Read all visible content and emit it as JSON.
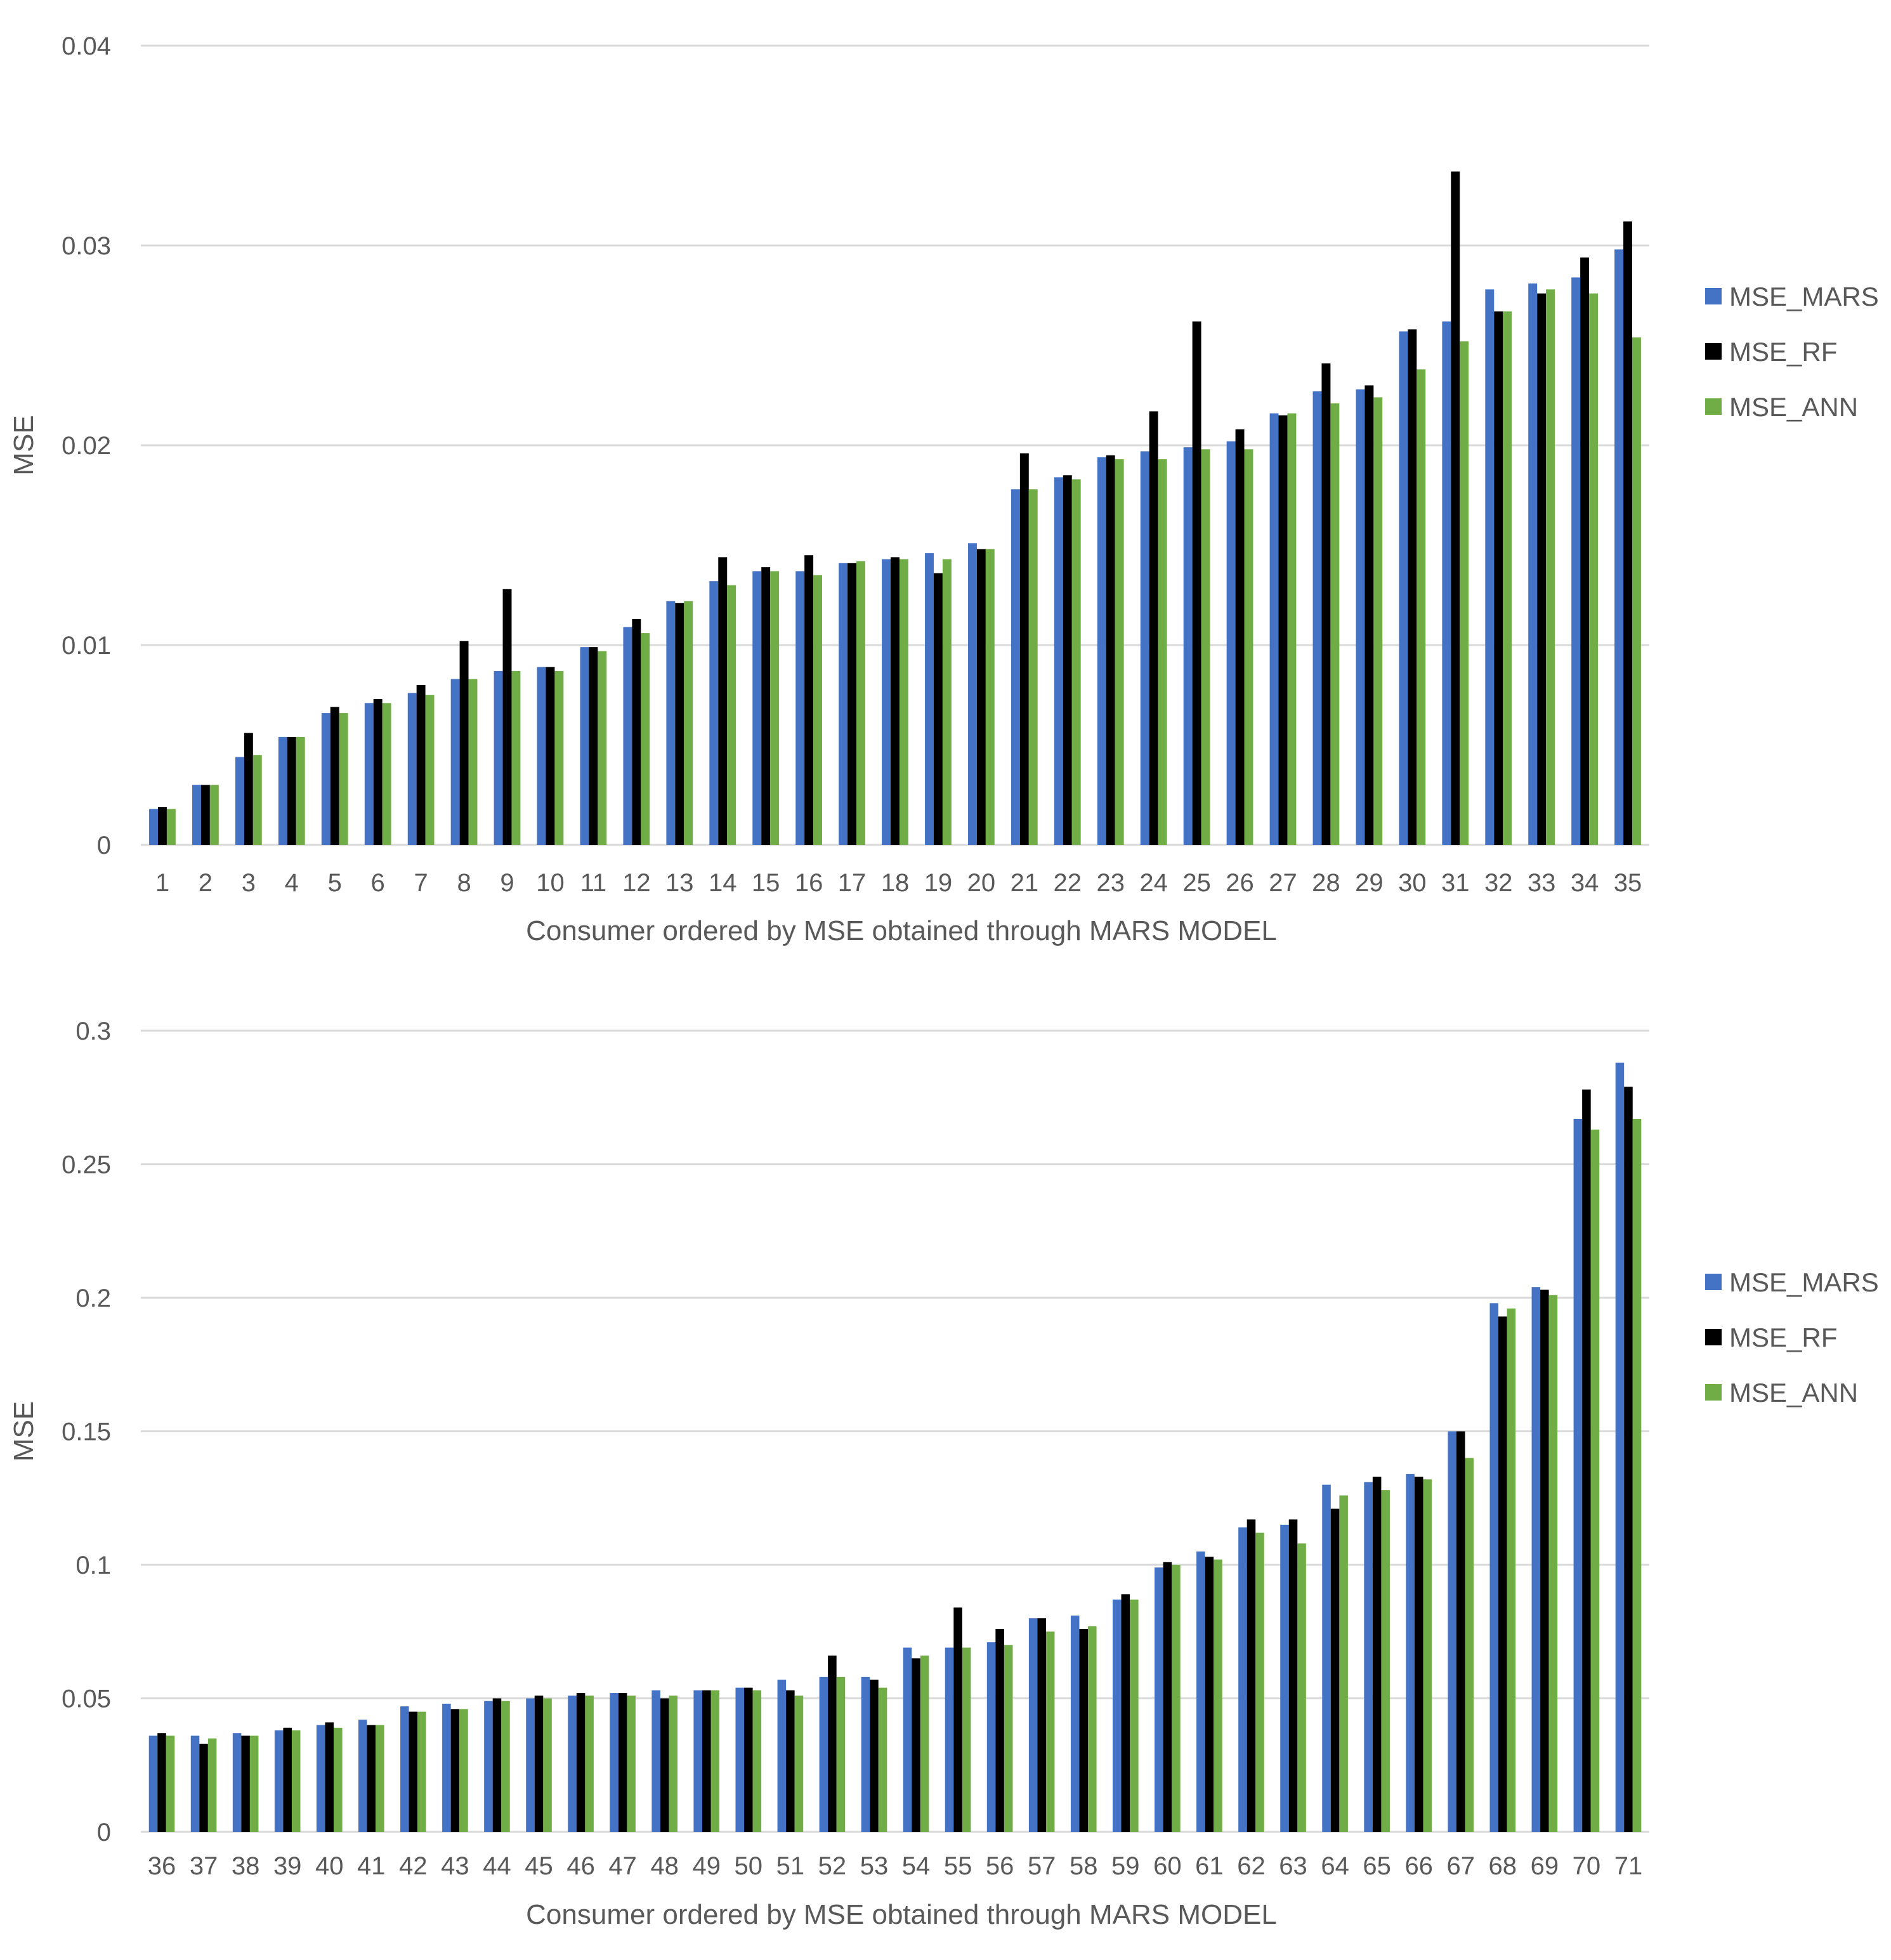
{
  "colors": {
    "MSE_MARS": "#4472C4",
    "MSE_RF": "#000000",
    "MSE_ANN": "#70AD47",
    "grid": "#D9D9D9",
    "text": "#595959"
  },
  "chart_data": [
    {
      "type": "bar",
      "title": "",
      "xlabel": "Consumer ordered by MSE obtained through MARS MODEL",
      "ylabel": "MSE",
      "ylim": [
        0,
        0.04
      ],
      "yticks": [
        0,
        0.01,
        0.02,
        0.03,
        0.04
      ],
      "ytick_labels": [
        "0",
        "0.01",
        "0.02",
        "0.03",
        "0.04"
      ],
      "grid": true,
      "legend_position": "right",
      "categories": [
        "1",
        "2",
        "3",
        "4",
        "5",
        "6",
        "7",
        "8",
        "9",
        "10",
        "11",
        "12",
        "13",
        "14",
        "15",
        "16",
        "17",
        "18",
        "19",
        "20",
        "21",
        "22",
        "23",
        "24",
        "25",
        "26",
        "27",
        "28",
        "29",
        "30",
        "31",
        "32",
        "33",
        "34",
        "35"
      ],
      "series": [
        {
          "name": "MSE_MARS",
          "values": [
            0.0018,
            0.003,
            0.0044,
            0.0054,
            0.0066,
            0.0071,
            0.0076,
            0.0083,
            0.0087,
            0.0089,
            0.0099,
            0.0109,
            0.0122,
            0.0132,
            0.0137,
            0.0137,
            0.0141,
            0.0143,
            0.0146,
            0.0151,
            0.0178,
            0.0184,
            0.0194,
            0.0197,
            0.0199,
            0.0202,
            0.0216,
            0.0227,
            0.0228,
            0.0257,
            0.0262,
            0.0278,
            0.0281,
            0.0284,
            0.0298
          ]
        },
        {
          "name": "MSE_RF",
          "values": [
            0.0019,
            0.003,
            0.0056,
            0.0054,
            0.0069,
            0.0073,
            0.008,
            0.0102,
            0.0128,
            0.0089,
            0.0099,
            0.0113,
            0.0121,
            0.0144,
            0.0139,
            0.0145,
            0.0141,
            0.0144,
            0.0136,
            0.0148,
            0.0196,
            0.0185,
            0.0195,
            0.0217,
            0.0262,
            0.0208,
            0.0215,
            0.0241,
            0.023,
            0.0258,
            0.0337,
            0.0267,
            0.0276,
            0.0294,
            0.0312
          ]
        },
        {
          "name": "MSE_ANN",
          "values": [
            0.0018,
            0.003,
            0.0045,
            0.0054,
            0.0066,
            0.0071,
            0.0075,
            0.0083,
            0.0087,
            0.0087,
            0.0097,
            0.0106,
            0.0122,
            0.013,
            0.0137,
            0.0135,
            0.0142,
            0.0143,
            0.0143,
            0.0148,
            0.0178,
            0.0183,
            0.0193,
            0.0193,
            0.0198,
            0.0198,
            0.0216,
            0.0221,
            0.0224,
            0.0238,
            0.0252,
            0.0267,
            0.0278,
            0.0276,
            0.0254
          ]
        }
      ]
    },
    {
      "type": "bar",
      "title": "",
      "xlabel": "Consumer ordered by MSE obtained through MARS MODEL",
      "ylabel": "MSE",
      "ylim": [
        0,
        0.3
      ],
      "yticks": [
        0,
        0.05,
        0.1,
        0.15,
        0.2,
        0.25,
        0.3
      ],
      "ytick_labels": [
        "0",
        "0.05",
        "0.1",
        "0.15",
        "0.2",
        "0.25",
        "0.3"
      ],
      "grid": true,
      "legend_position": "right",
      "categories": [
        "36",
        "37",
        "38",
        "39",
        "40",
        "41",
        "42",
        "43",
        "44",
        "45",
        "46",
        "47",
        "48",
        "49",
        "50",
        "51",
        "52",
        "53",
        "54",
        "55",
        "56",
        "57",
        "58",
        "59",
        "60",
        "61",
        "62",
        "63",
        "64",
        "65",
        "66",
        "67",
        "68",
        "69",
        "70",
        "71"
      ],
      "series": [
        {
          "name": "MSE_MARS",
          "values": [
            0.036,
            0.036,
            0.037,
            0.038,
            0.04,
            0.042,
            0.047,
            0.048,
            0.049,
            0.05,
            0.051,
            0.052,
            0.053,
            0.053,
            0.054,
            0.057,
            0.058,
            0.058,
            0.069,
            0.069,
            0.071,
            0.08,
            0.081,
            0.087,
            0.099,
            0.105,
            0.114,
            0.115,
            0.13,
            0.131,
            0.134,
            0.15,
            0.198,
            0.204,
            0.267,
            0.288
          ]
        },
        {
          "name": "MSE_RF",
          "values": [
            0.037,
            0.033,
            0.036,
            0.039,
            0.041,
            0.04,
            0.045,
            0.046,
            0.05,
            0.051,
            0.052,
            0.052,
            0.05,
            0.053,
            0.054,
            0.053,
            0.066,
            0.057,
            0.065,
            0.084,
            0.076,
            0.08,
            0.076,
            0.089,
            0.101,
            0.103,
            0.117,
            0.117,
            0.121,
            0.133,
            0.133,
            0.15,
            0.193,
            0.203,
            0.278,
            0.279
          ]
        },
        {
          "name": "MSE_ANN",
          "values": [
            0.036,
            0.035,
            0.036,
            0.038,
            0.039,
            0.04,
            0.045,
            0.046,
            0.049,
            0.05,
            0.051,
            0.051,
            0.051,
            0.053,
            0.053,
            0.051,
            0.058,
            0.054,
            0.066,
            0.069,
            0.07,
            0.075,
            0.077,
            0.087,
            0.1,
            0.102,
            0.112,
            0.108,
            0.126,
            0.128,
            0.132,
            0.14,
            0.196,
            0.201,
            0.263,
            0.267
          ]
        }
      ]
    }
  ]
}
